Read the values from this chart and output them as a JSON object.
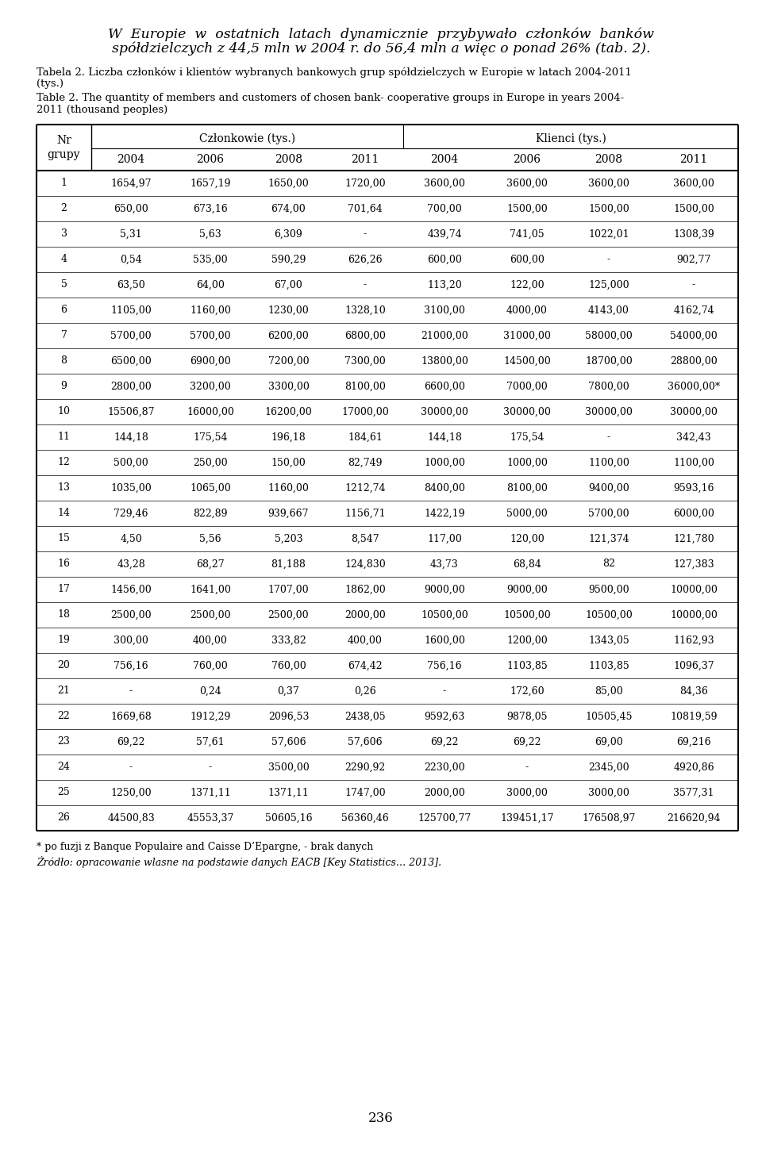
{
  "caption_pl_line1": "Tabela 2. Liczba członków i klientów wybranych bankowych grup spółdzielczych w Europie w latach 2004-2011",
  "caption_pl_line2": "(tys.)",
  "caption_en_line1": "Table 2. The quantity of members and customers of chosen bank- cooperative groups in Europe in years 2004-",
  "caption_en_line2": "2011 (thousand peoples)",
  "col_header_members": "Członkowie (tys.)",
  "col_header_clients": "Klienci (tys.)",
  "years": [
    "2004",
    "2006",
    "2008",
    "2011",
    "2004",
    "2006",
    "2008",
    "2011"
  ],
  "rows": [
    {
      "nr": "1",
      "m2004": "1654,97",
      "m2006": "1657,19",
      "m2008": "1650,00",
      "m2011": "1720,00",
      "k2004": "3600,00",
      "k2006": "3600,00",
      "k2008": "3600,00",
      "k2011": "3600,00"
    },
    {
      "nr": "2",
      "m2004": "650,00",
      "m2006": "673,16",
      "m2008": "674,00",
      "m2011": "701,64",
      "k2004": "700,00",
      "k2006": "1500,00",
      "k2008": "1500,00",
      "k2011": "1500,00"
    },
    {
      "nr": "3",
      "m2004": "5,31",
      "m2006": "5,63",
      "m2008": "6,309",
      "m2011": "-",
      "k2004": "439,74",
      "k2006": "741,05",
      "k2008": "1022,01",
      "k2011": "1308,39"
    },
    {
      "nr": "4",
      "m2004": "0,54",
      "m2006": "535,00",
      "m2008": "590,29",
      "m2011": "626,26",
      "k2004": "600,00",
      "k2006": "600,00",
      "k2008": "-",
      "k2011": "902,77"
    },
    {
      "nr": "5",
      "m2004": "63,50",
      "m2006": "64,00",
      "m2008": "67,00",
      "m2011": "-",
      "k2004": "113,20",
      "k2006": "122,00",
      "k2008": "125,000",
      "k2011": "-"
    },
    {
      "nr": "6",
      "m2004": "1105,00",
      "m2006": "1160,00",
      "m2008": "1230,00",
      "m2011": "1328,10",
      "k2004": "3100,00",
      "k2006": "4000,00",
      "k2008": "4143,00",
      "k2011": "4162,74"
    },
    {
      "nr": "7",
      "m2004": "5700,00",
      "m2006": "5700,00",
      "m2008": "6200,00",
      "m2011": "6800,00",
      "k2004": "21000,00",
      "k2006": "31000,00",
      "k2008": "58000,00",
      "k2011": "54000,00"
    },
    {
      "nr": "8",
      "m2004": "6500,00",
      "m2006": "6900,00",
      "m2008": "7200,00",
      "m2011": "7300,00",
      "k2004": "13800,00",
      "k2006": "14500,00",
      "k2008": "18700,00",
      "k2011": "28800,00"
    },
    {
      "nr": "9",
      "m2004": "2800,00",
      "m2006": "3200,00",
      "m2008": "3300,00",
      "m2011": "8100,00",
      "k2004": "6600,00",
      "k2006": "7000,00",
      "k2008": "7800,00",
      "k2011": "36000,00*"
    },
    {
      "nr": "10",
      "m2004": "15506,87",
      "m2006": "16000,00",
      "m2008": "16200,00",
      "m2011": "17000,00",
      "k2004": "30000,00",
      "k2006": "30000,00",
      "k2008": "30000,00",
      "k2011": "30000,00"
    },
    {
      "nr": "11",
      "m2004": "144,18",
      "m2006": "175,54",
      "m2008": "196,18",
      "m2011": "184,61",
      "k2004": "144,18",
      "k2006": "175,54",
      "k2008": "-",
      "k2011": "342,43"
    },
    {
      "nr": "12",
      "m2004": "500,00",
      "m2006": "250,00",
      "m2008": "150,00",
      "m2011": "82,749",
      "k2004": "1000,00",
      "k2006": "1000,00",
      "k2008": "1100,00",
      "k2011": "1100,00"
    },
    {
      "nr": "13",
      "m2004": "1035,00",
      "m2006": "1065,00",
      "m2008": "1160,00",
      "m2011": "1212,74",
      "k2004": "8400,00",
      "k2006": "8100,00",
      "k2008": "9400,00",
      "k2011": "9593,16"
    },
    {
      "nr": "14",
      "m2004": "729,46",
      "m2006": "822,89",
      "m2008": "939,667",
      "m2011": "1156,71",
      "k2004": "1422,19",
      "k2006": "5000,00",
      "k2008": "5700,00",
      "k2011": "6000,00"
    },
    {
      "nr": "15",
      "m2004": "4,50",
      "m2006": "5,56",
      "m2008": "5,203",
      "m2011": "8,547",
      "k2004": "117,00",
      "k2006": "120,00",
      "k2008": "121,374",
      "k2011": "121,780"
    },
    {
      "nr": "16",
      "m2004": "43,28",
      "m2006": "68,27",
      "m2008": "81,188",
      "m2011": "124,830",
      "k2004": "43,73",
      "k2006": "68,84",
      "k2008": "82",
      "k2011": "127,383"
    },
    {
      "nr": "17",
      "m2004": "1456,00",
      "m2006": "1641,00",
      "m2008": "1707,00",
      "m2011": "1862,00",
      "k2004": "9000,00",
      "k2006": "9000,00",
      "k2008": "9500,00",
      "k2011": "10000,00"
    },
    {
      "nr": "18",
      "m2004": "2500,00",
      "m2006": "2500,00",
      "m2008": "2500,00",
      "m2011": "2000,00",
      "k2004": "10500,00",
      "k2006": "10500,00",
      "k2008": "10500,00",
      "k2011": "10000,00"
    },
    {
      "nr": "19",
      "m2004": "300,00",
      "m2006": "400,00",
      "m2008": "333,82",
      "m2011": "400,00",
      "k2004": "1600,00",
      "k2006": "1200,00",
      "k2008": "1343,05",
      "k2011": "1162,93"
    },
    {
      "nr": "20",
      "m2004": "756,16",
      "m2006": "760,00",
      "m2008": "760,00",
      "m2011": "674,42",
      "k2004": "756,16",
      "k2006": "1103,85",
      "k2008": "1103,85",
      "k2011": "1096,37"
    },
    {
      "nr": "21",
      "m2004": "-",
      "m2006": "0,24",
      "m2008": "0,37",
      "m2011": "0,26",
      "k2004": "-",
      "k2006": "172,60",
      "k2008": "85,00",
      "k2011": "84,36"
    },
    {
      "nr": "22",
      "m2004": "1669,68",
      "m2006": "1912,29",
      "m2008": "2096,53",
      "m2011": "2438,05",
      "k2004": "9592,63",
      "k2006": "9878,05",
      "k2008": "10505,45",
      "k2011": "10819,59"
    },
    {
      "nr": "23",
      "m2004": "69,22",
      "m2006": "57,61",
      "m2008": "57,606",
      "m2011": "57,606",
      "k2004": "69,22",
      "k2006": "69,22",
      "k2008": "69,00",
      "k2011": "69,216"
    },
    {
      "nr": "24",
      "m2004": "-",
      "m2006": "-",
      "m2008": "3500,00",
      "m2011": "2290,92",
      "k2004": "2230,00",
      "k2006": "-",
      "k2008": "2345,00",
      "k2011": "4920,86"
    },
    {
      "nr": "25",
      "m2004": "1250,00",
      "m2006": "1371,11",
      "m2008": "1371,11",
      "m2011": "1747,00",
      "k2004": "2000,00",
      "k2006": "3000,00",
      "k2008": "3000,00",
      "k2011": "3577,31"
    },
    {
      "nr": "26",
      "m2004": "44500,83",
      "m2006": "45553,37",
      "m2008": "50605,16",
      "m2011": "56360,46",
      "k2004": "125700,77",
      "k2006": "139451,17",
      "k2008": "176508,97",
      "k2011": "216620,94"
    }
  ],
  "footnote1": "* po fuzji z Banque Populaire and Caisse D’Epargne, - brak danych",
  "footnote2": "Żródło: opracowanie wlasne na podstawie danych EACB [Key Statistics… 2013].",
  "page_number": "236",
  "title_line1": "W  Europie  w  ostatnich  latach  dynamicznie  przybywało  członków  banków",
  "title_line2": "spółdzielczych z 44,5 mln w 2004 r. do 56,4 mln a więc o ponad 26% (tab. 2)."
}
